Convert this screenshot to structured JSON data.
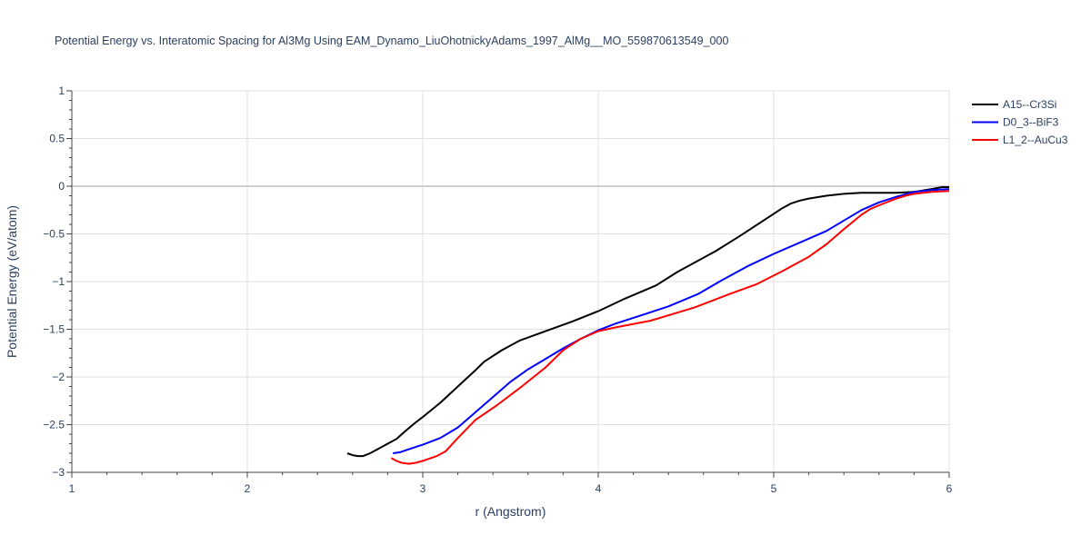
{
  "chart_data": {
    "type": "line",
    "title": "Potential Energy vs. Interatomic Spacing for Al3Mg Using EAM_Dynamo_LiuOhotnickyAdams_1997_AlMg__MO_559870613549_000",
    "xlabel": "r (Angstrom)",
    "ylabel": "Potential Energy (eV/atom)",
    "xlim": [
      1,
      6
    ],
    "ylim": [
      -3,
      1
    ],
    "x_ticks": [
      "1",
      "2",
      "3",
      "4",
      "5",
      "6"
    ],
    "y_ticks": [
      "1",
      "0.5",
      "0",
      "−0.5",
      "−1",
      "−1.5",
      "−2",
      "−2.5",
      "−3"
    ],
    "grid": true,
    "legend_position": "top-right",
    "series": [
      {
        "name": "A15--Cr3Si",
        "color": "#000000",
        "x": [
          2.57,
          2.6,
          2.63,
          2.66,
          2.7,
          2.75,
          2.8,
          2.85,
          2.9,
          2.95,
          3.0,
          3.1,
          3.2,
          3.3,
          3.35,
          3.45,
          3.55,
          3.7,
          3.85,
          4.0,
          4.15,
          4.33,
          4.45,
          4.55,
          4.67,
          4.8,
          4.9,
          5.0,
          5.05,
          5.1,
          5.15,
          5.2,
          5.3,
          5.4,
          5.5,
          5.6,
          5.7,
          5.8,
          5.9,
          5.96,
          6.0
        ],
        "y": [
          -2.8,
          -2.82,
          -2.83,
          -2.83,
          -2.8,
          -2.75,
          -2.7,
          -2.65,
          -2.57,
          -2.49,
          -2.42,
          -2.27,
          -2.1,
          -1.93,
          -1.84,
          -1.72,
          -1.62,
          -1.52,
          -1.42,
          -1.31,
          -1.18,
          -1.04,
          -0.9,
          -0.8,
          -0.68,
          -0.53,
          -0.41,
          -0.29,
          -0.23,
          -0.18,
          -0.15,
          -0.13,
          -0.1,
          -0.08,
          -0.07,
          -0.07,
          -0.07,
          -0.06,
          -0.03,
          -0.01,
          -0.01
        ]
      },
      {
        "name": "D0_3--BiF3",
        "color": "#0000ff",
        "x": [
          2.83,
          2.87,
          2.9,
          2.95,
          3.0,
          3.1,
          3.2,
          3.3,
          3.4,
          3.5,
          3.6,
          3.7,
          3.8,
          3.9,
          4.0,
          4.1,
          4.25,
          4.4,
          4.57,
          4.7,
          4.85,
          5.0,
          5.15,
          5.3,
          5.4,
          5.5,
          5.6,
          5.7,
          5.8,
          5.9,
          6.0
        ],
        "y": [
          -2.8,
          -2.79,
          -2.77,
          -2.74,
          -2.71,
          -2.64,
          -2.53,
          -2.37,
          -2.21,
          -2.05,
          -1.92,
          -1.81,
          -1.7,
          -1.6,
          -1.51,
          -1.44,
          -1.35,
          -1.26,
          -1.13,
          -0.99,
          -0.84,
          -0.71,
          -0.59,
          -0.47,
          -0.36,
          -0.25,
          -0.17,
          -0.11,
          -0.06,
          -0.04,
          -0.03
        ]
      },
      {
        "name": "L1_2--AuCu3",
        "color": "#ff0000",
        "x": [
          2.82,
          2.85,
          2.88,
          2.92,
          2.96,
          3.0,
          3.08,
          3.13,
          3.2,
          3.3,
          3.42,
          3.55,
          3.7,
          3.8,
          3.9,
          4.0,
          4.1,
          4.3,
          4.55,
          4.75,
          4.9,
          5.05,
          5.2,
          5.3,
          5.4,
          5.5,
          5.55,
          5.6,
          5.7,
          5.75,
          5.8,
          5.9,
          6.0
        ],
        "y": [
          -2.85,
          -2.88,
          -2.9,
          -2.91,
          -2.9,
          -2.88,
          -2.83,
          -2.78,
          -2.64,
          -2.45,
          -2.3,
          -2.12,
          -1.9,
          -1.72,
          -1.6,
          -1.52,
          -1.48,
          -1.41,
          -1.27,
          -1.13,
          -1.03,
          -0.89,
          -0.74,
          -0.61,
          -0.45,
          -0.3,
          -0.24,
          -0.2,
          -0.13,
          -0.1,
          -0.08,
          -0.06,
          -0.05
        ]
      }
    ]
  }
}
